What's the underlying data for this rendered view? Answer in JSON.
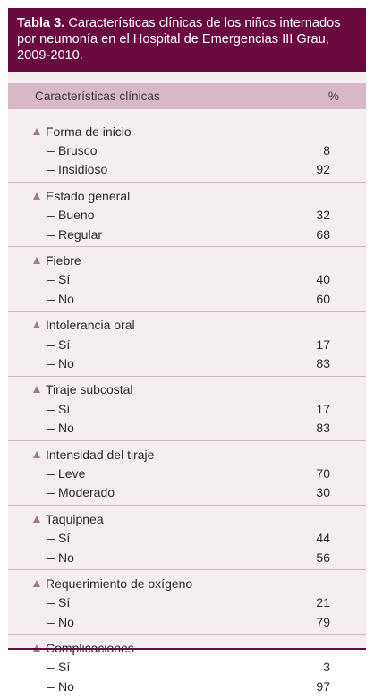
{
  "title": {
    "label": "Tabla 3.",
    "text": " Características clínicas de los niños internados por neumonía en el Hospital de Emergencias III Grau, 2009-2010."
  },
  "header": {
    "col1": "Características clínicas",
    "col2": "%"
  },
  "groups": [
    {
      "name": "Forma de inicio",
      "rows": [
        {
          "label": "Brusco",
          "value": "8"
        },
        {
          "label": "Insidioso",
          "value": "92"
        }
      ]
    },
    {
      "name": "Estado general",
      "rows": [
        {
          "label": "Bueno",
          "value": "32"
        },
        {
          "label": "Regular",
          "value": "68"
        }
      ]
    },
    {
      "name": "Fiebre",
      "rows": [
        {
          "label": "Sí",
          "value": "40"
        },
        {
          "label": "No",
          "value": "60"
        }
      ]
    },
    {
      "name": "Intolerancia oral",
      "rows": [
        {
          "label": "Sí",
          "value": "17"
        },
        {
          "label": "No",
          "value": "83"
        }
      ]
    },
    {
      "name": "Tiraje subcostal",
      "rows": [
        {
          "label": "Sí",
          "value": "17"
        },
        {
          "label": "No",
          "value": "83"
        }
      ]
    },
    {
      "name": "Intensidad del tiraje",
      "rows": [
        {
          "label": "Leve",
          "value": "70"
        },
        {
          "label": "Moderado",
          "value": "30"
        }
      ]
    },
    {
      "name": "Taquipnea",
      "rows": [
        {
          "label": "Sí",
          "value": "44"
        },
        {
          "label": "No",
          "value": "56"
        }
      ]
    },
    {
      "name": "Requerimiento de oxígeno",
      "rows": [
        {
          "label": "Sí",
          "value": "21"
        },
        {
          "label": "No",
          "value": "79"
        }
      ]
    },
    {
      "name": "Complicaciones",
      "rows": [
        {
          "label": "Sí",
          "value": "3"
        },
        {
          "label": "No",
          "value": "97"
        }
      ]
    }
  ],
  "colors": {
    "title_bg": "#6a0a3f",
    "header_bg": "#d8b8c7",
    "panel_bg": "#f5eef1",
    "bullet": "#a07a8e"
  },
  "icons": {
    "category_bullet": "triangle-up-icon",
    "sub_bullet": "dash"
  }
}
